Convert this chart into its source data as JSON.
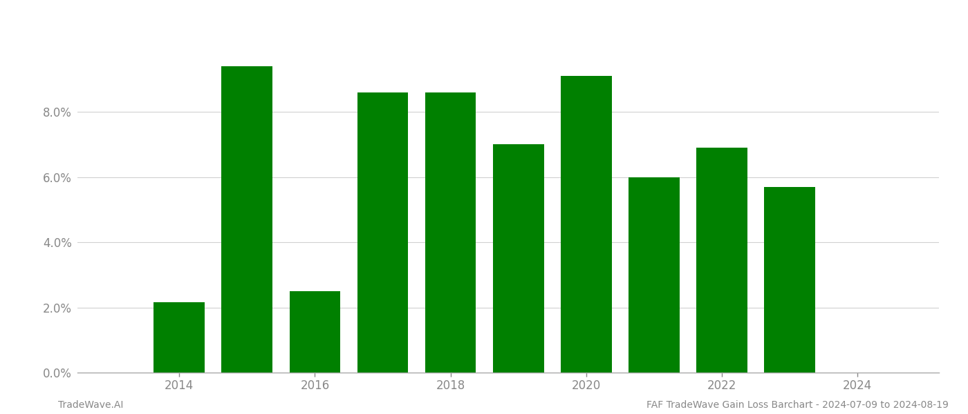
{
  "years": [
    2014,
    2015,
    2016,
    2017,
    2018,
    2019,
    2020,
    2021,
    2022,
    2023
  ],
  "values": [
    0.0215,
    0.094,
    0.025,
    0.086,
    0.086,
    0.07,
    0.091,
    0.06,
    0.069,
    0.057
  ],
  "bar_color": "#008000",
  "ylim": [
    0,
    0.108
  ],
  "yticks": [
    0.0,
    0.02,
    0.04,
    0.06,
    0.08
  ],
  "ytick_labels": [
    "0.0%",
    "2.0%",
    "4.0%",
    "6.0%",
    "8.0%"
  ],
  "xlim": [
    2012.5,
    2025.2
  ],
  "xticks": [
    2014,
    2016,
    2018,
    2020,
    2022,
    2024
  ],
  "background_color": "#ffffff",
  "grid_color": "#d0d0d0",
  "axis_color": "#aaaaaa",
  "tick_label_color": "#888888",
  "footer_left": "TradeWave.AI",
  "footer_right": "FAF TradeWave Gain Loss Barchart - 2024-07-09 to 2024-08-19",
  "footer_fontsize": 10,
  "bar_width": 0.75
}
